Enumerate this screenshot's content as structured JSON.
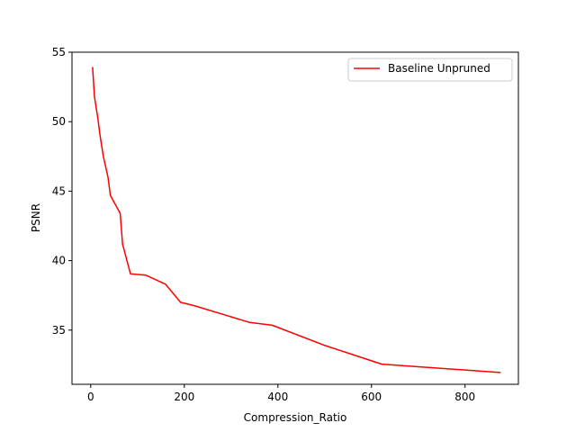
{
  "chart_data": {
    "type": "line",
    "title": "",
    "xlabel": "Compression_Ratio",
    "ylabel": "PSNR",
    "xlim": [
      -40,
      914
    ],
    "ylim": [
      31.1,
      55
    ],
    "xticks": [
      0,
      200,
      400,
      600,
      800
    ],
    "yticks": [
      35,
      40,
      45,
      50,
      55
    ],
    "grid": false,
    "legend_position": "top-right",
    "series": [
      {
        "name": "Baseline Unpruned",
        "color": "#ff0000",
        "points": [
          [
            4,
            53.9
          ],
          [
            8,
            51.8
          ],
          [
            15,
            50.3
          ],
          [
            20,
            49.0
          ],
          [
            27,
            47.5
          ],
          [
            37,
            46.0
          ],
          [
            42,
            44.7
          ],
          [
            63,
            43.4
          ],
          [
            68,
            41.2
          ],
          [
            85,
            39.05
          ],
          [
            118,
            38.95
          ],
          [
            160,
            38.3
          ],
          [
            192,
            37.0
          ],
          [
            222,
            36.75
          ],
          [
            340,
            35.55
          ],
          [
            388,
            35.35
          ],
          [
            500,
            33.9
          ],
          [
            622,
            32.55
          ],
          [
            875,
            31.95
          ]
        ]
      }
    ]
  }
}
